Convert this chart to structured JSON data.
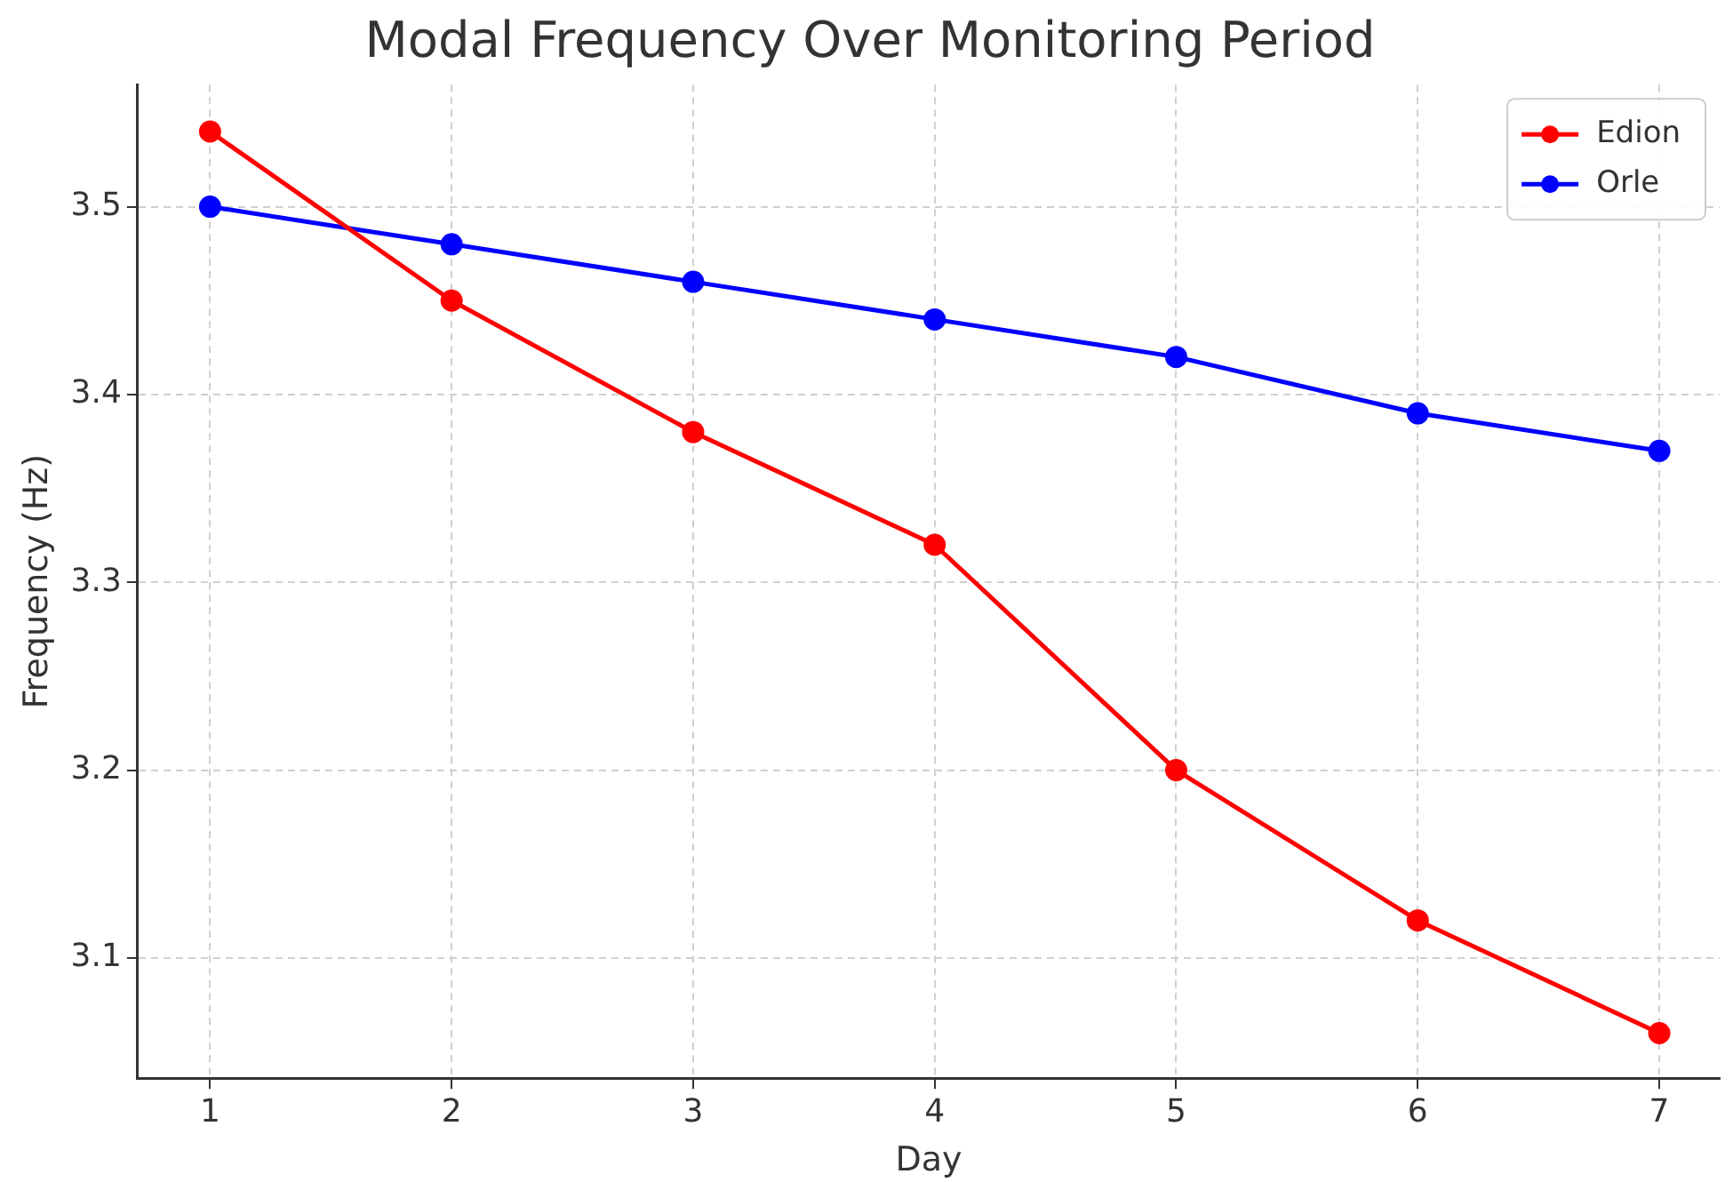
{
  "chart_data": {
    "type": "line",
    "title": "Modal Frequency Over Monitoring Period",
    "xlabel": "Day",
    "ylabel": "Frequency (Hz)",
    "x": [
      1,
      2,
      3,
      4,
      5,
      6,
      7
    ],
    "series": [
      {
        "name": "Edion",
        "color": "#ff0000",
        "values": [
          3.54,
          3.45,
          3.38,
          3.32,
          3.2,
          3.12,
          3.06
        ]
      },
      {
        "name": "Orle",
        "color": "#0000ff",
        "values": [
          3.5,
          3.48,
          3.46,
          3.44,
          3.42,
          3.39,
          3.37
        ]
      }
    ],
    "xlim": [
      0.7,
      7.25
    ],
    "xticks": [
      1,
      2,
      3,
      4,
      5,
      6,
      7
    ],
    "ylim": [
      3.036,
      3.565
    ],
    "yticks": [
      3.1,
      3.2,
      3.3,
      3.4,
      3.5
    ],
    "grid": true,
    "legend": "top right",
    "marker": "circle",
    "line_style": "solid"
  }
}
